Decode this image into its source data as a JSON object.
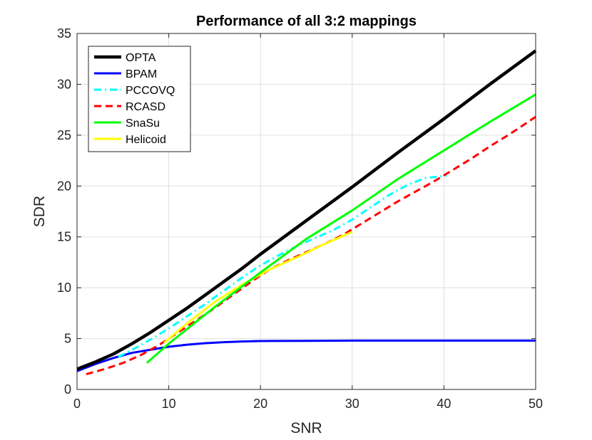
{
  "chart_data": {
    "type": "line",
    "title": "Performance of all 3:2 mappings",
    "xlabel": "SNR",
    "ylabel": "SDR",
    "xlim": [
      0,
      50
    ],
    "ylim": [
      0,
      35
    ],
    "xticks": [
      "0",
      "10",
      "20",
      "30",
      "40",
      "50"
    ],
    "yticks": [
      "0",
      "5",
      "10",
      "15",
      "20",
      "25",
      "30",
      "35"
    ],
    "grid": true,
    "legend_position": "top-left",
    "series": [
      {
        "name": "OPTA",
        "color": "#000000",
        "style": "solid",
        "width": "thick",
        "x": [
          0,
          2,
          4,
          6,
          8,
          10,
          12,
          14,
          16,
          18,
          20,
          25,
          30,
          35,
          40,
          45,
          50
        ],
        "y": [
          2.0,
          2.7,
          3.5,
          4.5,
          5.6,
          6.8,
          8.0,
          9.3,
          10.6,
          11.9,
          13.3,
          16.6,
          19.9,
          23.3,
          26.6,
          30.0,
          33.3
        ]
      },
      {
        "name": "BPAM",
        "color": "#0000ff",
        "style": "solid",
        "width": "normal",
        "x": [
          0,
          2,
          4,
          6,
          8,
          10,
          12,
          14,
          16,
          18,
          20,
          25,
          30,
          35,
          40,
          45,
          50
        ],
        "y": [
          1.8,
          2.5,
          3.1,
          3.6,
          3.9,
          4.2,
          4.4,
          4.55,
          4.65,
          4.72,
          4.76,
          4.78,
          4.8,
          4.8,
          4.8,
          4.8,
          4.8
        ]
      },
      {
        "name": "PCCOVQ",
        "color": "#00ffff",
        "style": "dashdot",
        "width": "normal",
        "x": [
          4.5,
          6,
          8,
          10,
          12,
          14,
          16,
          18,
          20,
          22,
          24,
          26,
          28,
          30,
          32,
          34,
          36,
          38,
          40.3
        ],
        "y": [
          3.2,
          3.9,
          4.9,
          6.0,
          7.2,
          8.4,
          9.7,
          11.0,
          12.2,
          13.2,
          14.1,
          14.9,
          15.7,
          16.7,
          17.9,
          19.1,
          20.1,
          20.8,
          21.0
        ]
      },
      {
        "name": "RCASD",
        "color": "#ff0000",
        "style": "dashed",
        "width": "normal",
        "x": [
          1,
          3,
          5,
          7,
          9,
          11,
          13,
          15,
          17,
          19,
          21,
          23,
          25,
          27,
          29,
          31,
          33,
          35,
          37,
          39,
          41,
          43,
          45,
          47,
          50
        ],
        "y": [
          1.5,
          2.0,
          2.6,
          3.4,
          4.4,
          5.6,
          6.8,
          8.0,
          9.3,
          10.6,
          11.8,
          12.7,
          13.5,
          14.3,
          15.2,
          16.3,
          17.4,
          18.5,
          19.5,
          20.5,
          21.6,
          22.7,
          23.9,
          25.0,
          26.8
        ]
      },
      {
        "name": "SnaSu",
        "color": "#00ff00",
        "style": "solid",
        "width": "normal",
        "x": [
          7.6,
          10,
          15,
          20,
          25,
          30,
          35,
          40,
          45,
          50
        ],
        "y": [
          2.6,
          4.5,
          8.1,
          11.5,
          14.8,
          17.6,
          20.7,
          23.5,
          26.3,
          29.0
        ]
      },
      {
        "name": "Helicoid",
        "color": "#ffff00",
        "style": "solid",
        "width": "normal",
        "x": [
          9.5,
          12,
          15,
          18,
          21,
          24,
          27,
          30
        ],
        "y": [
          4.6,
          6.5,
          8.6,
          10.3,
          11.8,
          13.0,
          14.3,
          15.5
        ]
      }
    ]
  }
}
